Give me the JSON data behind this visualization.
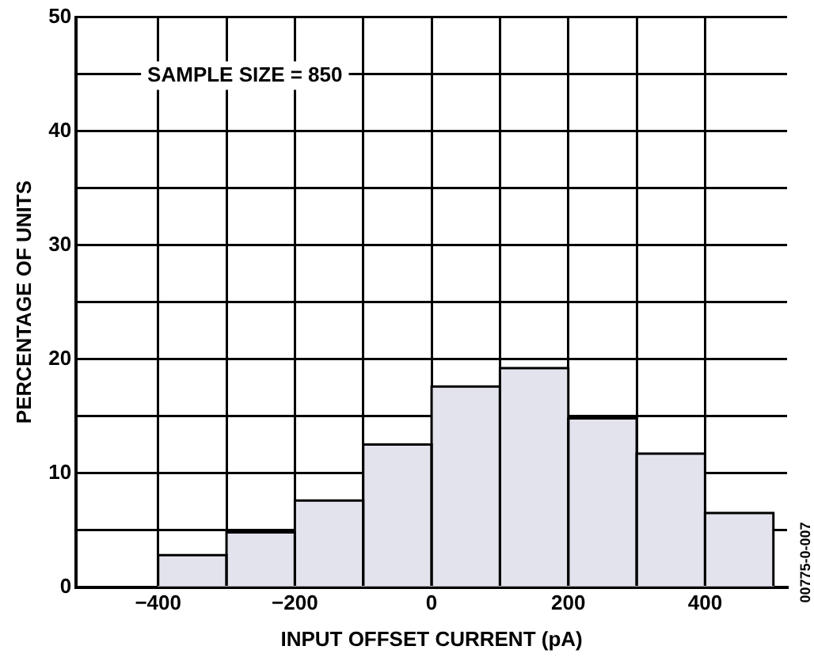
{
  "chart_data": {
    "type": "histogram",
    "xlabel": "INPUT OFFSET CURRENT (pA)",
    "ylabel": "PERCENTAGE OF UNITS",
    "bins": [
      -400,
      -300,
      -200,
      -100,
      0,
      100,
      200,
      300,
      400,
      500
    ],
    "values": [
      2.8,
      4.8,
      7.6,
      12.5,
      17.6,
      19.2,
      14.8,
      11.7,
      6.5
    ],
    "color": "#e2e3ec",
    "xlim": [
      -520,
      520
    ],
    "xticks": [
      -400,
      {
        "value": -300,
        "label": null
      },
      -200,
      {
        "value": -100,
        "label": null
      },
      0,
      {
        "value": 100,
        "label": null
      },
      200,
      {
        "value": 300,
        "label": null
      },
      400
    ],
    "ylim": [
      0,
      50
    ],
    "yticks": [
      0,
      {
        "value": 5,
        "label": null
      },
      10,
      {
        "value": 15,
        "label": null
      },
      20,
      {
        "value": 25,
        "label": null
      },
      30,
      {
        "value": 35,
        "label": null
      },
      40,
      {
        "value": 45,
        "label": null
      },
      50
    ],
    "grid": true,
    "annotations": [
      "SAMPLE SIZE = 850",
      "00775-0-007"
    ]
  }
}
